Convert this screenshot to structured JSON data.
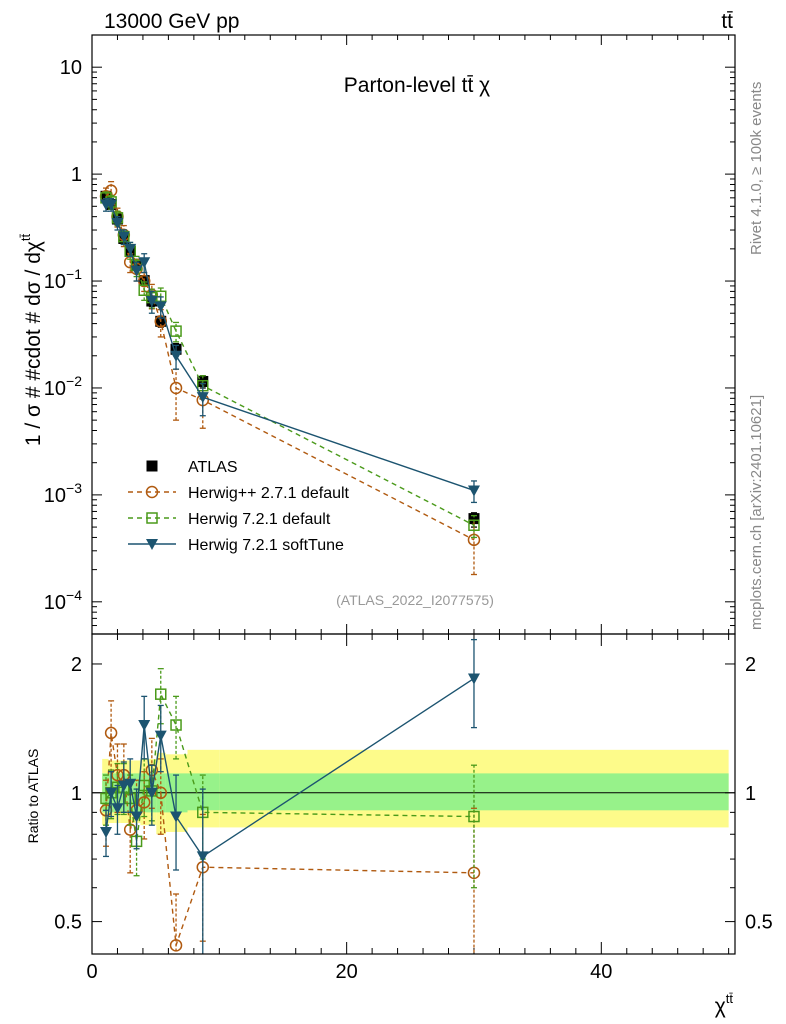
{
  "header": {
    "left": "13000 GeV pp",
    "right": "tt̄"
  },
  "side_texts": {
    "rivet": "Rivet 4.1.0, ≥ 100k events",
    "mcplots": "mcplots.cern.ch [arXiv:2401.10621]"
  },
  "chart_data": [
    {
      "type": "scatter",
      "panel": "main",
      "title": "Parton-level tt̄ χ",
      "ylabel": "1 / σ # #cdot # dσ / dχ",
      "ylabel_sup": "tt̄",
      "yscale": "log",
      "ylim": [
        5e-05,
        20
      ],
      "xlim": [
        0,
        50.5
      ],
      "yticks": [
        {
          "v": 10,
          "base": "10",
          "exp": ""
        },
        {
          "v": 1,
          "base": "1",
          "exp": ""
        },
        {
          "v": 0.1,
          "base": "10",
          "exp": "−1"
        },
        {
          "v": 0.01,
          "base": "10",
          "exp": "−2"
        },
        {
          "v": 0.001,
          "base": "10",
          "exp": "−3"
        },
        {
          "v": 0.0001,
          "base": "10",
          "exp": "−4"
        }
      ],
      "watermark": "(ATLAS_2022_I2077575)",
      "legend_position": "lower-left",
      "series": [
        {
          "name": "ATLAS",
          "color": "#000000",
          "marker": "square-filled",
          "line": "none",
          "x": [
            1.1,
            1.5,
            2.0,
            2.5,
            3.0,
            3.5,
            4.1,
            4.7,
            5.4,
            6.6,
            8.7,
            30.0
          ],
          "y": [
            0.62,
            0.52,
            0.38,
            0.25,
            0.19,
            0.14,
            0.101,
            0.065,
            0.042,
            0.023,
            0.0115,
            0.0006
          ],
          "ylo": [
            0.56,
            0.47,
            0.34,
            0.22,
            0.17,
            0.125,
            0.09,
            0.058,
            0.037,
            0.02,
            0.01,
            0.0005
          ],
          "yhi": [
            0.68,
            0.57,
            0.42,
            0.28,
            0.21,
            0.155,
            0.112,
            0.072,
            0.047,
            0.026,
            0.013,
            0.00068
          ]
        },
        {
          "name": "Herwig++ 2.7.1 default",
          "color": "#b05a10",
          "marker": "circle-open",
          "line": "dashed",
          "x": [
            1.1,
            1.5,
            2.0,
            2.5,
            3.0,
            3.5,
            4.1,
            4.7,
            5.4,
            6.6,
            8.7,
            30.0
          ],
          "y": [
            0.62,
            0.7,
            0.4,
            0.27,
            0.15,
            0.13,
            0.1,
            0.074,
            0.042,
            0.01,
            0.0077,
            0.00038
          ],
          "ylo": [
            0.52,
            0.55,
            0.32,
            0.21,
            0.12,
            0.1,
            0.08,
            0.055,
            0.03,
            0.005,
            0.0042,
            0.00018
          ],
          "yhi": [
            0.74,
            0.85,
            0.48,
            0.33,
            0.18,
            0.16,
            0.12,
            0.093,
            0.054,
            0.015,
            0.011,
            0.00058
          ]
        },
        {
          "name": "Herwig 7.2.1 default",
          "color": "#4a9a1a",
          "marker": "square-open",
          "line": "dashed",
          "x": [
            1.1,
            1.5,
            2.0,
            2.5,
            3.0,
            3.5,
            4.1,
            4.7,
            5.4,
            6.6,
            8.7,
            30.0
          ],
          "y": [
            0.6,
            0.55,
            0.39,
            0.26,
            0.19,
            0.14,
            0.082,
            0.07,
            0.072,
            0.034,
            0.0105,
            0.00052
          ],
          "ylo": [
            0.52,
            0.47,
            0.33,
            0.22,
            0.16,
            0.11,
            0.066,
            0.056,
            0.058,
            0.027,
            0.008,
            0.0004
          ],
          "yhi": [
            0.68,
            0.63,
            0.45,
            0.3,
            0.22,
            0.17,
            0.098,
            0.084,
            0.086,
            0.041,
            0.013,
            0.00064
          ]
        },
        {
          "name": "Herwig 7.2.1 softTune",
          "color": "#1c5470",
          "marker": "triangle-down-filled",
          "line": "solid",
          "x": [
            1.1,
            1.5,
            2.0,
            2.5,
            3.0,
            3.5,
            4.1,
            4.7,
            5.4,
            6.6,
            8.7,
            30.0
          ],
          "y": [
            0.52,
            0.52,
            0.35,
            0.26,
            0.2,
            0.125,
            0.15,
            0.065,
            0.058,
            0.02,
            0.0082,
            0.0011
          ],
          "ylo": [
            0.45,
            0.45,
            0.3,
            0.22,
            0.17,
            0.1,
            0.12,
            0.05,
            0.045,
            0.015,
            0.0055,
            0.00085
          ],
          "yhi": [
            0.59,
            0.59,
            0.4,
            0.3,
            0.23,
            0.15,
            0.18,
            0.08,
            0.071,
            0.025,
            0.011,
            0.00135
          ]
        }
      ]
    },
    {
      "type": "scatter",
      "panel": "ratio",
      "ylabel": "Ratio to ATLAS",
      "xlabel": "χ",
      "xlabel_sup": "tt̄",
      "yscale": "log",
      "ylim": [
        0.42,
        2.35
      ],
      "xlim": [
        0,
        50.5
      ],
      "yticks": [
        {
          "v": 0.5,
          "label": "0.5"
        },
        {
          "v": 1,
          "label": "1"
        },
        {
          "v": 2,
          "label": "2"
        }
      ],
      "xticks": [
        {
          "v": 0,
          "label": "0"
        },
        {
          "v": 20,
          "label": "20"
        },
        {
          "v": 40,
          "label": "40"
        }
      ],
      "bands": {
        "x_edges": [
          0.8,
          1.3,
          1.75,
          2.25,
          2.75,
          3.25,
          3.8,
          4.4,
          5.05,
          5.8,
          7.5,
          10.0,
          50.0
        ],
        "stat_lo": [
          0.9,
          0.9,
          0.9,
          0.9,
          0.9,
          0.9,
          0.9,
          0.9,
          0.9,
          0.9,
          0.91,
          0.91
        ],
        "stat_hi": [
          1.11,
          1.11,
          1.11,
          1.11,
          1.11,
          1.11,
          1.11,
          1.11,
          1.11,
          1.11,
          1.11,
          1.11
        ],
        "total_lo": [
          0.84,
          0.85,
          0.85,
          0.85,
          0.85,
          0.85,
          0.84,
          0.84,
          0.8,
          0.81,
          0.83,
          0.83
        ],
        "total_hi": [
          1.2,
          1.19,
          1.19,
          1.19,
          1.19,
          1.19,
          1.2,
          1.2,
          1.24,
          1.23,
          1.26,
          1.26
        ]
      },
      "series": [
        {
          "name": "Herwig++ 2.7.1 default",
          "x": [
            1.1,
            1.5,
            2.0,
            2.5,
            3.0,
            3.5,
            4.1,
            4.7,
            5.4,
            6.6,
            8.7,
            30.0
          ],
          "y": [
            0.91,
            1.38,
            1.1,
            1.1,
            0.82,
            0.91,
            0.95,
            1.13,
            1.0,
            0.44,
            0.67,
            0.65
          ],
          "ylo": [
            0.75,
            1.12,
            0.9,
            0.9,
            0.65,
            0.75,
            0.78,
            0.92,
            0.8,
            0.3,
            0.45,
            0.38
          ],
          "yhi": [
            1.07,
            1.64,
            1.3,
            1.3,
            0.99,
            1.07,
            1.12,
            1.34,
            1.2,
            0.58,
            0.89,
            0.92
          ]
        },
        {
          "name": "Herwig 7.2.1 default",
          "x": [
            1.1,
            1.5,
            2.0,
            2.5,
            3.0,
            3.5,
            4.1,
            4.7,
            5.4,
            6.6,
            8.7,
            30.0
          ],
          "y": [
            0.97,
            1.0,
            1.03,
            1.03,
            0.97,
            0.77,
            1.04,
            1.01,
            1.7,
            1.44,
            0.9,
            0.88
          ],
          "ylo": [
            0.84,
            0.87,
            0.89,
            0.89,
            0.84,
            0.64,
            0.88,
            0.86,
            1.45,
            1.2,
            0.7,
            0.6
          ],
          "yhi": [
            1.1,
            1.13,
            1.17,
            1.17,
            1.1,
            0.9,
            1.2,
            1.16,
            1.95,
            1.68,
            1.1,
            1.16
          ]
        },
        {
          "name": "Herwig 7.2.1 softTune",
          "x": [
            1.1,
            1.5,
            2.0,
            2.5,
            3.0,
            3.5,
            4.1,
            4.7,
            5.4,
            6.6,
            8.7,
            30.0
          ],
          "y": [
            0.81,
            1.0,
            0.92,
            1.04,
            1.05,
            0.88,
            1.44,
            1.0,
            1.36,
            0.88,
            0.71,
            1.85
          ],
          "ylo": [
            0.71,
            0.88,
            0.8,
            0.9,
            0.9,
            0.74,
            1.2,
            0.84,
            1.12,
            0.66,
            0.4,
            1.42
          ],
          "yhi": [
            0.91,
            1.12,
            1.04,
            1.18,
            1.2,
            1.02,
            1.68,
            1.16,
            1.6,
            1.1,
            1.02,
            2.28
          ]
        }
      ]
    }
  ]
}
